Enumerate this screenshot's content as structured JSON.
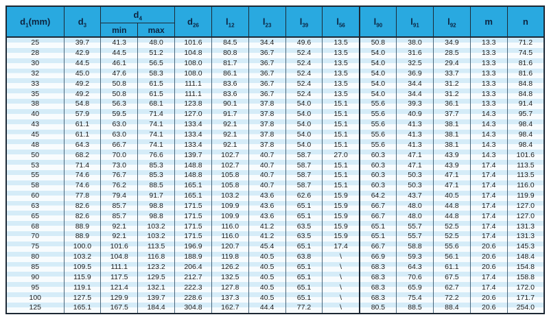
{
  "table": {
    "title": "dimension-spec-table",
    "colors": {
      "header_bg": "#29a9e0",
      "header_text": "#0d2440",
      "stripe_blue": "#d5ecf8",
      "stripe_white": "#f8fcfe",
      "frame": "#1c2733",
      "grid": "#486479"
    },
    "columns": [
      {
        "id": "d1",
        "base": "d",
        "sub": "1",
        "suffix": "(mm)"
      },
      {
        "id": "d3",
        "base": "d",
        "sub": "3"
      },
      {
        "id": "d4",
        "base": "d",
        "sub": "4",
        "children": [
          "min",
          "max"
        ]
      },
      {
        "id": "d26",
        "base": "d",
        "sub": "26"
      },
      {
        "id": "l12",
        "base": "l",
        "sub": "12"
      },
      {
        "id": "l23",
        "base": "l",
        "sub": "23"
      },
      {
        "id": "l39",
        "base": "l",
        "sub": "39"
      },
      {
        "id": "l56",
        "base": "l",
        "sub": "56"
      },
      {
        "id": "l90",
        "base": "l",
        "sub": "90"
      },
      {
        "id": "l91",
        "base": "l",
        "sub": "91"
      },
      {
        "id": "l92",
        "base": "l",
        "sub": "92"
      },
      {
        "id": "m",
        "base": "m"
      },
      {
        "id": "n",
        "base": "n"
      }
    ],
    "sub_headers": [
      "min",
      "max"
    ],
    "rows": [
      [
        "25",
        "39.7",
        "41.3",
        "48.0",
        "101.6",
        "84.5",
        "34.4",
        "49.6",
        "13.5",
        "50.8",
        "38.0",
        "34.9",
        "13.3",
        "71.2"
      ],
      [
        "28",
        "42.9",
        "44.5",
        "51.2",
        "104.8",
        "80.8",
        "36.7",
        "52.4",
        "13.5",
        "54.0",
        "31.6",
        "28.5",
        "13.3",
        "74.5"
      ],
      [
        "30",
        "44.5",
        "46.1",
        "56.5",
        "108.0",
        "81.7",
        "36.7",
        "52.4",
        "13.5",
        "54.0",
        "32.5",
        "29.4",
        "13.3",
        "81.6"
      ],
      [
        "32",
        "45.0",
        "47.6",
        "58.3",
        "108.0",
        "86.1",
        "36.7",
        "52.4",
        "13.5",
        "54.0",
        "36.9",
        "33.7",
        "13.3",
        "81.6"
      ],
      [
        "33",
        "49.2",
        "50.8",
        "61.5",
        "111.1",
        "83.6",
        "36.7",
        "52.4",
        "13.5",
        "54.0",
        "34.4",
        "31.2",
        "13.3",
        "84.8"
      ],
      [
        "35",
        "49.2",
        "50.8",
        "61.5",
        "111.1",
        "83.6",
        "36.7",
        "52.4",
        "13.5",
        "54.0",
        "34.4",
        "31.2",
        "13.3",
        "84.8"
      ],
      [
        "38",
        "54.8",
        "56.3",
        "68.1",
        "123.8",
        "90.1",
        "37.8",
        "54.0",
        "15.1",
        "55.6",
        "39.3",
        "36.1",
        "13.3",
        "91.4"
      ],
      [
        "40",
        "57.9",
        "59.5",
        "71.4",
        "127.0",
        "91.7",
        "37.8",
        "54.0",
        "15.1",
        "55.6",
        "40.9",
        "37.7",
        "14.3",
        "95.7"
      ],
      [
        "43",
        "61.1",
        "63.0",
        "74.1",
        "133.4",
        "92.1",
        "37.8",
        "54.0",
        "15.1",
        "55.6",
        "41.3",
        "38.1",
        "14.3",
        "98.4"
      ],
      [
        "45",
        "61.1",
        "63.0",
        "74.1",
        "133.4",
        "92.1",
        "37.8",
        "54.0",
        "15.1",
        "55.6",
        "41.3",
        "38.1",
        "14.3",
        "98.4"
      ],
      [
        "48",
        "64.3",
        "66.7",
        "74.1",
        "133.4",
        "92.1",
        "37.8",
        "54.0",
        "15.1",
        "55.6",
        "41.3",
        "38.1",
        "14.3",
        "98.4"
      ],
      [
        "50",
        "68.2",
        "70.0",
        "76.6",
        "139.7",
        "102.7",
        "40.7",
        "58.7",
        "27.0",
        "60.3",
        "47.1",
        "43.9",
        "14.3",
        "101.6"
      ],
      [
        "53",
        "71.4",
        "73.0",
        "85.3",
        "148.8",
        "102.7",
        "40.7",
        "58.7",
        "15.1",
        "60.3",
        "47.1",
        "43.9",
        "17.4",
        "113.5"
      ],
      [
        "55",
        "74.6",
        "76.7",
        "85.3",
        "148.8",
        "105.8",
        "40.7",
        "58.7",
        "15.1",
        "60.3",
        "50.3",
        "47.1",
        "17.4",
        "113.5"
      ],
      [
        "58",
        "74.6",
        "76.2",
        "88.5",
        "165.1",
        "105.8",
        "40.7",
        "58.7",
        "15.1",
        "60.3",
        "50.3",
        "47.1",
        "17.4",
        "116.0"
      ],
      [
        "60",
        "77.8",
        "79.4",
        "91.7",
        "165.1",
        "103.2",
        "43.6",
        "62.6",
        "15.9",
        "64.2",
        "43.7",
        "40.5",
        "17.4",
        "119.9"
      ],
      [
        "63",
        "82.6",
        "85.7",
        "98.8",
        "171.5",
        "109.9",
        "43.6",
        "65.1",
        "15.9",
        "66.7",
        "48.0",
        "44.8",
        "17.4",
        "127.0"
      ],
      [
        "65",
        "82.6",
        "85.7",
        "98.8",
        "171.5",
        "109.9",
        "43.6",
        "65.1",
        "15.9",
        "66.7",
        "48.0",
        "44.8",
        "17.4",
        "127.0"
      ],
      [
        "68",
        "88.9",
        "92.1",
        "103.2",
        "171.5",
        "116.0",
        "41.2",
        "63.5",
        "15.9",
        "65.1",
        "55.7",
        "52.5",
        "17.4",
        "131.3"
      ],
      [
        "70",
        "88.9",
        "92.1",
        "103.2",
        "171.5",
        "116.0",
        "41.2",
        "63.5",
        "15.9",
        "65.1",
        "55.7",
        "52.5",
        "17.4",
        "131.3"
      ],
      [
        "75",
        "100.0",
        "101.6",
        "113.5",
        "196.9",
        "120.7",
        "45.4",
        "65.1",
        "17.4",
        "66.7",
        "58.8",
        "55.6",
        "20.6",
        "145.3"
      ],
      [
        "80",
        "103.2",
        "104.8",
        "116.8",
        "188.9",
        "119.8",
        "40.5",
        "63.8",
        "\\",
        "66.9",
        "59.3",
        "56.1",
        "20.6",
        "148.4"
      ],
      [
        "85",
        "109.5",
        "111.1",
        "123.2",
        "206.4",
        "126.2",
        "40.5",
        "65.1",
        "\\",
        "68.3",
        "64.3",
        "61.1",
        "20.6",
        "154.8"
      ],
      [
        "90",
        "115.9",
        "117.5",
        "129.5",
        "212.7",
        "132.5",
        "40.5",
        "65.1",
        "\\",
        "68.3",
        "70.6",
        "67.5",
        "17.4",
        "158.8"
      ],
      [
        "95",
        "119.1",
        "121.4",
        "132.1",
        "222.3",
        "127.8",
        "40.5",
        "65.1",
        "\\",
        "68.3",
        "65.9",
        "62.7",
        "17.4",
        "172.0"
      ],
      [
        "100",
        "127.5",
        "129.9",
        "139.7",
        "228.6",
        "137.3",
        "40.5",
        "65.1",
        "\\",
        "68.3",
        "75.4",
        "72.2",
        "20.6",
        "171.7"
      ],
      [
        "125",
        "165.1",
        "167.5",
        "184.4",
        "304.8",
        "162.7",
        "44.4",
        "77.2",
        "\\",
        "80.5",
        "88.5",
        "88.4",
        "20.6",
        "254.0"
      ]
    ]
  }
}
